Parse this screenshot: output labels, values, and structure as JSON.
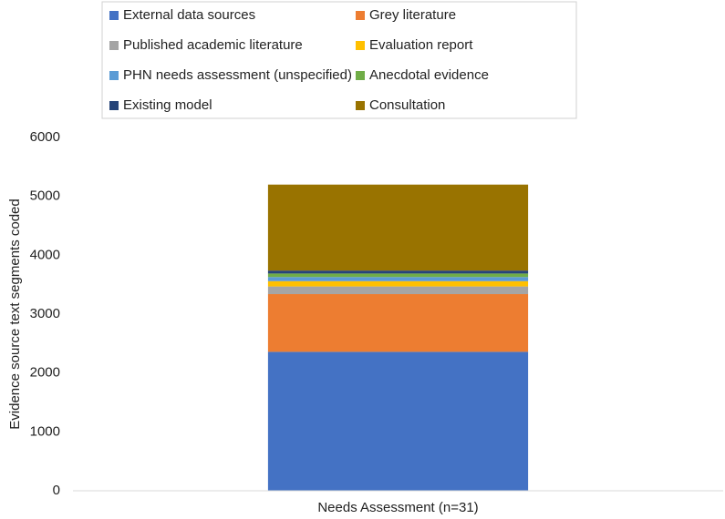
{
  "chart_data": {
    "type": "bar",
    "stacked": true,
    "categories": [
      "Needs Assessment (n=31)"
    ],
    "ylabel": "Evidence source text segments coded",
    "xlabel": "",
    "ylim": [
      0,
      6000
    ],
    "yticks": [
      0,
      1000,
      2000,
      3000,
      4000,
      5000,
      6000
    ],
    "grid": false,
    "legend_position": "top",
    "series": [
      {
        "name": "External data sources",
        "color": "#4472C4",
        "values": [
          2360
        ]
      },
      {
        "name": "Grey literature",
        "color": "#ED7D31",
        "values": [
          980
        ]
      },
      {
        "name": "Published academic literature",
        "color": "#A5A5A5",
        "values": [
          130
        ]
      },
      {
        "name": "Evaluation report",
        "color": "#FFC000",
        "values": [
          90
        ]
      },
      {
        "name": "PHN needs assessment (unspecified)",
        "color": "#5B9BD5",
        "values": [
          70
        ]
      },
      {
        "name": "Anecdotal evidence",
        "color": "#70AD47",
        "values": [
          60
        ]
      },
      {
        "name": "Existing model",
        "color": "#264478",
        "values": [
          50
        ]
      },
      {
        "name": "Consultation",
        "color": "#997300",
        "values": [
          1460
        ]
      }
    ]
  }
}
